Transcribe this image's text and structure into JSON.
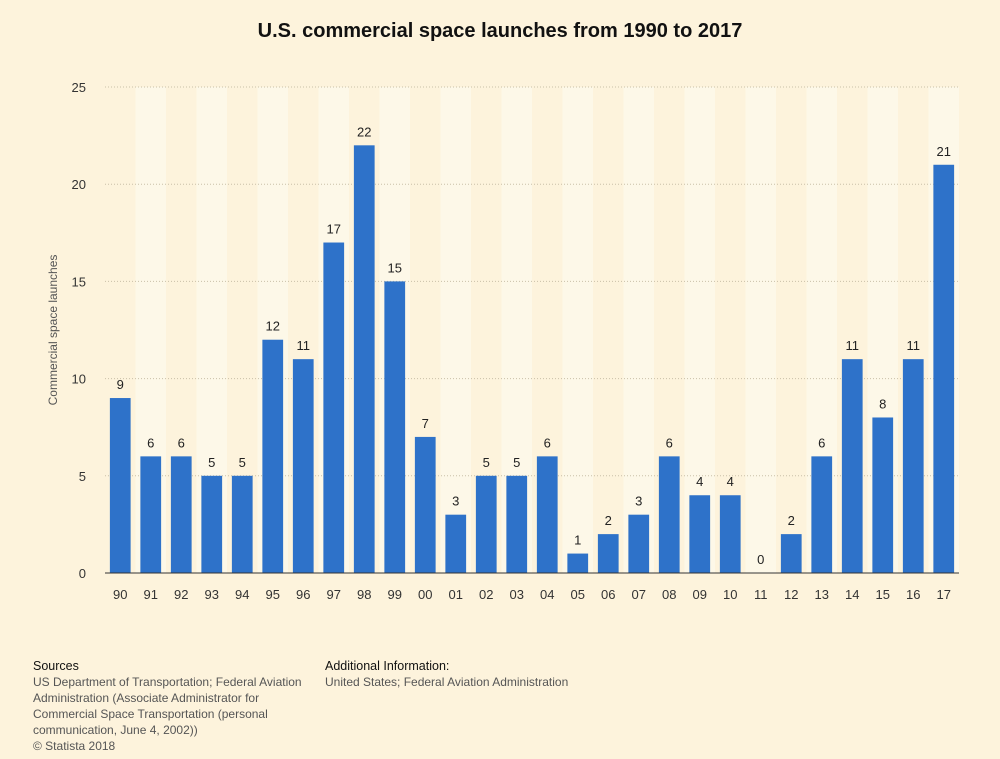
{
  "chart_data": {
    "type": "bar",
    "title": "U.S. commercial space launches from 1990 to 2017",
    "xlabel": "",
    "ylabel": "Commercial space launches",
    "ylim": [
      0,
      25
    ],
    "yticks": [
      0,
      5,
      10,
      15,
      20,
      25
    ],
    "grid": true,
    "categories": [
      "90",
      "91",
      "92",
      "93",
      "94",
      "95",
      "96",
      "97",
      "98",
      "99",
      "00",
      "01",
      "02",
      "03",
      "04",
      "05",
      "06",
      "07",
      "08",
      "09",
      "10",
      "11",
      "12",
      "13",
      "14",
      "15",
      "16",
      "17"
    ],
    "values": [
      9,
      6,
      6,
      5,
      5,
      12,
      11,
      17,
      22,
      15,
      7,
      3,
      5,
      5,
      6,
      1,
      2,
      3,
      6,
      4,
      4,
      0,
      2,
      6,
      11,
      8,
      11,
      21
    ],
    "bar_color": "#2e72c9",
    "stripe_color": "#fdf8e8"
  },
  "footer": {
    "sources_heading": "Sources",
    "sources_text": "US Department of Transportation; Federal Aviation\nAdministration (Associate Administrator for\nCommercial Space Transportation (personal\ncommunication, June 4, 2002))\n© Statista 2018",
    "additional_heading": "Additional Information:",
    "additional_text": "United States; Federal Aviation Administration"
  }
}
